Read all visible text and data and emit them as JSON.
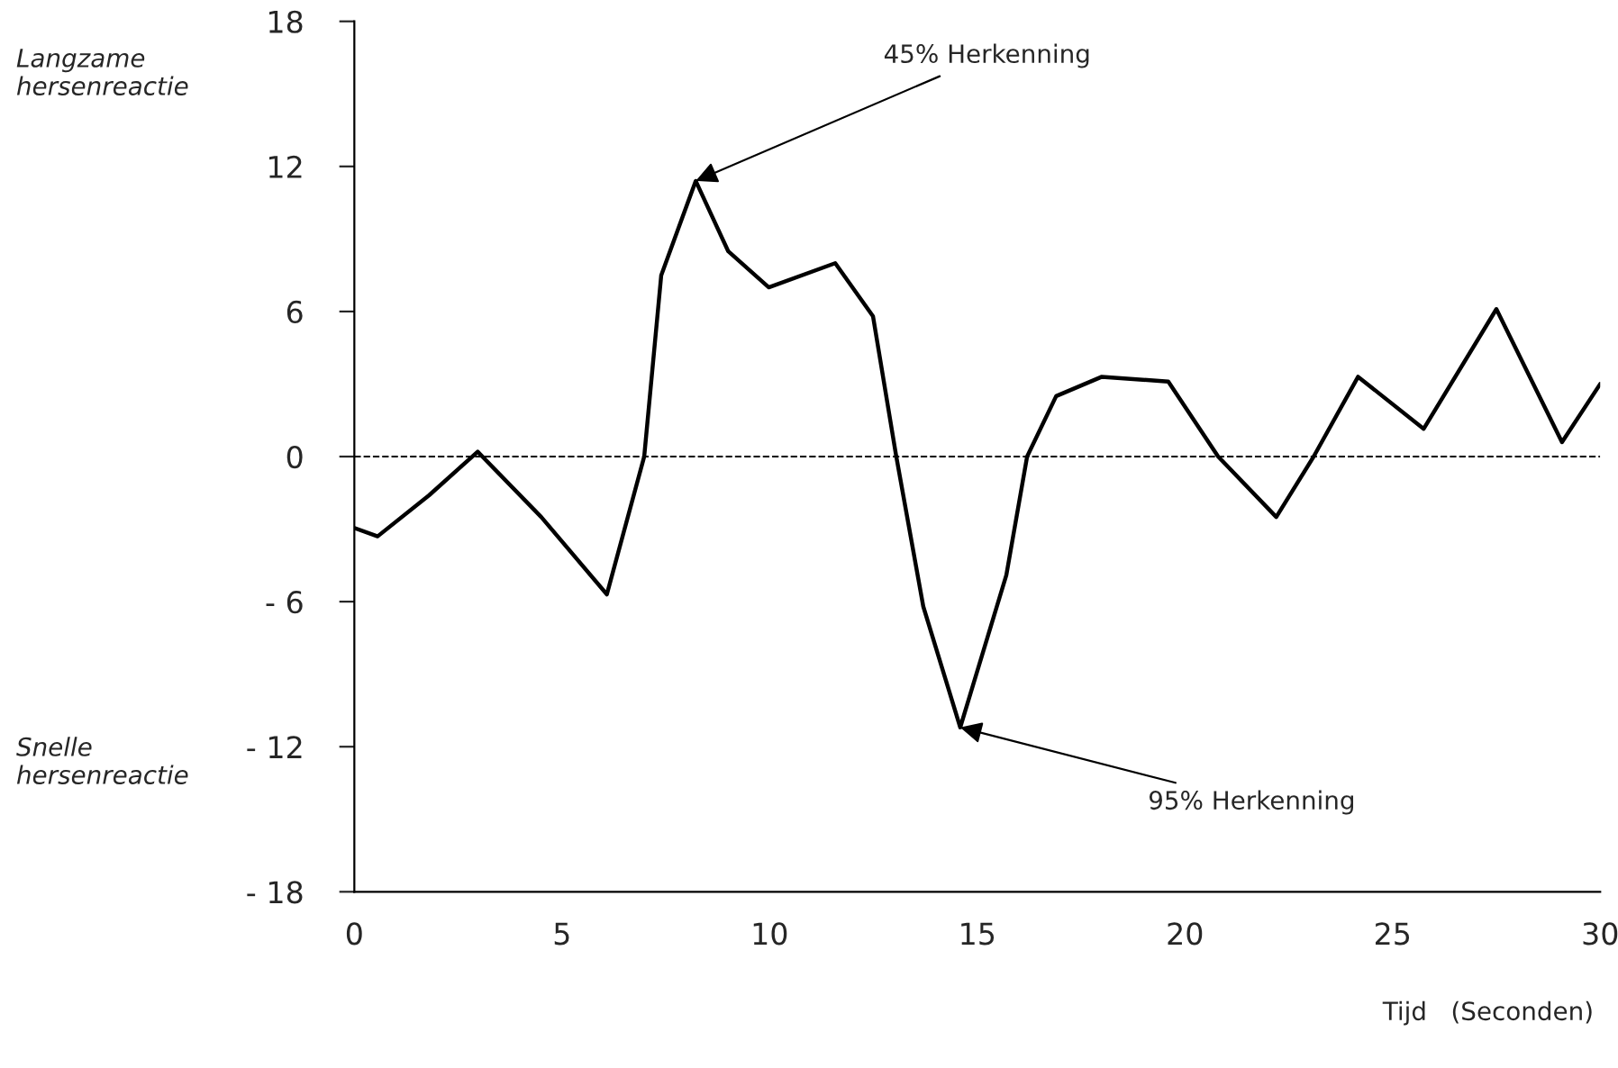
{
  "chart_data": {
    "type": "line",
    "xlabel": "Tijd   (Seconden)",
    "x": [
      0,
      0.56,
      1.8,
      2.97,
      4.5,
      6.08,
      6.98,
      7.39,
      8.22,
      9.0,
      9.98,
      11.58,
      12.49,
      13.05,
      13.7,
      14.59,
      15.7,
      16.2,
      16.9,
      18.0,
      19.6,
      20.8,
      22.2,
      23.1,
      24.17,
      25.75,
      27.5,
      29.08,
      30
    ],
    "series": [
      {
        "color": "#000000",
        "values": [
          -2.95,
          -3.3,
          -1.6,
          0.2,
          -2.5,
          -5.7,
          0,
          7.5,
          11.4,
          8.5,
          7.0,
          8.0,
          5.8,
          0,
          -6.2,
          -11.2,
          -4.9,
          0,
          2.5,
          3.3,
          3.1,
          0,
          -2.5,
          0,
          3.3,
          1.15,
          6.1,
          0.6,
          3.0
        ]
      }
    ],
    "xlim": [
      0,
      30
    ],
    "xticks": [
      0,
      5,
      10,
      15,
      20,
      25,
      30
    ],
    "ylim": [
      -18,
      18
    ],
    "yticks": [
      {
        "value": -18,
        "label": "- 18"
      },
      {
        "value": -12,
        "label": "- 12"
      },
      {
        "value": -6,
        "label": "- 6"
      },
      0,
      6,
      12,
      18
    ],
    "ref_lines": [
      {
        "axis": "y",
        "value": 0,
        "label": null,
        "color": "#000000",
        "line_style": "dashed"
      }
    ],
    "annotations": [
      {
        "text": "45% Herkenning",
        "x": 8.22,
        "y": 11.4
      },
      {
        "text": "95% Herkenning",
        "x": 14.59,
        "y": -11.2
      },
      "Langzame\nhersenreactie",
      "Snelle\nhersenreactie"
    ],
    "grid": false,
    "legend": false,
    "marker": "none",
    "line_style": "solid"
  }
}
